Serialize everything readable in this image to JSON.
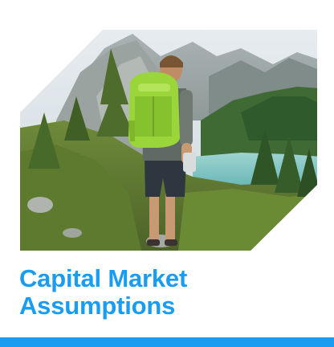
{
  "hero": {
    "description_icon": "hiker-mountain-lake-photo"
  },
  "title": {
    "line1": "Capital Market",
    "line2": "Assumptions"
  },
  "colors": {
    "title": "#1a9df0",
    "bar": "#1a9df0",
    "background": "#ffffff"
  }
}
